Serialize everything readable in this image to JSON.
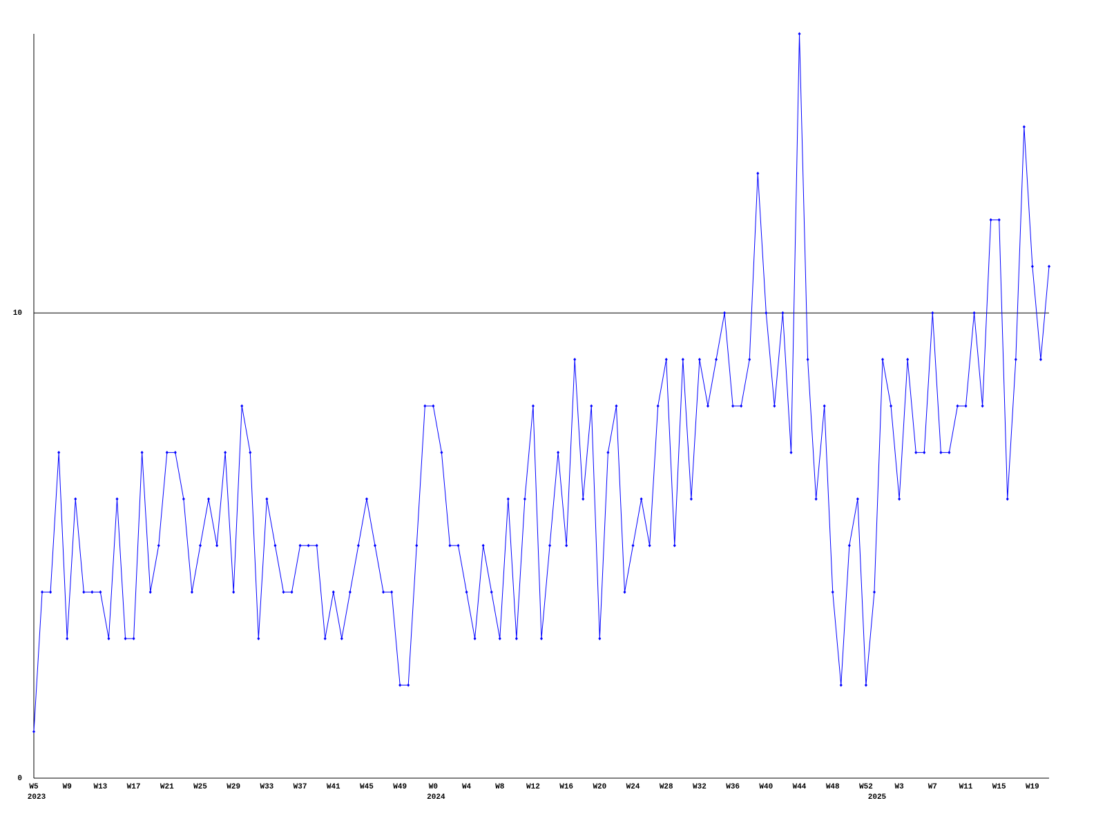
{
  "chart_data": {
    "type": "line",
    "categories": [
      "W5",
      null,
      null,
      null,
      "W9",
      null,
      null,
      null,
      "W13",
      null,
      null,
      null,
      "W17",
      null,
      null,
      null,
      "W21",
      null,
      null,
      null,
      "W25",
      null,
      null,
      null,
      "W29",
      null,
      null,
      null,
      "W33",
      null,
      null,
      null,
      "W37",
      null,
      null,
      null,
      "W41",
      null,
      null,
      null,
      "W45",
      null,
      null,
      null,
      "W49",
      null,
      null,
      null,
      "W0",
      null,
      null,
      null,
      "W4",
      null,
      null,
      null,
      "W8",
      null,
      null,
      null,
      "W12",
      null,
      null,
      null,
      "W16",
      null,
      null,
      null,
      "W20",
      null,
      null,
      null,
      "W24",
      null,
      null,
      null,
      "W28",
      null,
      null,
      null,
      "W32",
      null,
      null,
      null,
      "W36",
      null,
      null,
      null,
      "W40",
      null,
      null,
      null,
      "W44",
      null,
      null,
      null,
      "W48",
      null,
      null,
      null,
      "W52",
      null,
      null,
      null,
      "W3",
      null,
      null,
      null,
      "W7",
      null,
      null,
      null,
      "W11",
      null,
      null,
      null,
      "W15",
      null,
      null,
      null,
      "W19",
      null,
      null
    ],
    "category_years": [
      "2023",
      null,
      null,
      null,
      null,
      null,
      null,
      null,
      null,
      null,
      null,
      null,
      null,
      null,
      null,
      null,
      null,
      null,
      null,
      null,
      null,
      null,
      null,
      null,
      null,
      null,
      null,
      null,
      null,
      null,
      null,
      null,
      null,
      null,
      null,
      null,
      null,
      null,
      null,
      null,
      null,
      null,
      null,
      null,
      null,
      null,
      null,
      null,
      "2024",
      null,
      null,
      null,
      null,
      null,
      null,
      null,
      null,
      null,
      null,
      null,
      null,
      null,
      null,
      null,
      null,
      null,
      null,
      null,
      null,
      null,
      null,
      null,
      null,
      null,
      null,
      null,
      null,
      null,
      null,
      null,
      null,
      null,
      null,
      null,
      null,
      null,
      null,
      null,
      null,
      null,
      null,
      null,
      null,
      null,
      null,
      null,
      null,
      null,
      null,
      null,
      null,
      "2025",
      null,
      null,
      null,
      null,
      null,
      null,
      null,
      null,
      null,
      null,
      null,
      null,
      null,
      null,
      null,
      null,
      null,
      null,
      null,
      null,
      null
    ],
    "series": [
      {
        "color": "#0000ff",
        "values": [
          1,
          4,
          4,
          7,
          3,
          6,
          4,
          4,
          4,
          3,
          6,
          3,
          3,
          7,
          4,
          5,
          7,
          7,
          6,
          4,
          5,
          6,
          5,
          7,
          4,
          8,
          7,
          3,
          6,
          5,
          4,
          4,
          5,
          5,
          5,
          3,
          4,
          3,
          4,
          5,
          6,
          5,
          4,
          4,
          2,
          2,
          5,
          8,
          8,
          7,
          5,
          5,
          4,
          3,
          5,
          4,
          3,
          6,
          3,
          6,
          8,
          3,
          5,
          7,
          5,
          9,
          6,
          8,
          3,
          7,
          8,
          4,
          5,
          6,
          5,
          8,
          9,
          5,
          9,
          6,
          9,
          8,
          9,
          10,
          8,
          8,
          9,
          13,
          10,
          8,
          10,
          7,
          16,
          9,
          6,
          8,
          4,
          2,
          5,
          6,
          2,
          4,
          9,
          8,
          6,
          9,
          7,
          7,
          10,
          7,
          7,
          8,
          8,
          10,
          8,
          12,
          12,
          6,
          9,
          14,
          11,
          9,
          11
        ]
      }
    ],
    "ylim": [
      0,
      16
    ],
    "yticks": [
      0,
      10
    ],
    "grid": true
  }
}
